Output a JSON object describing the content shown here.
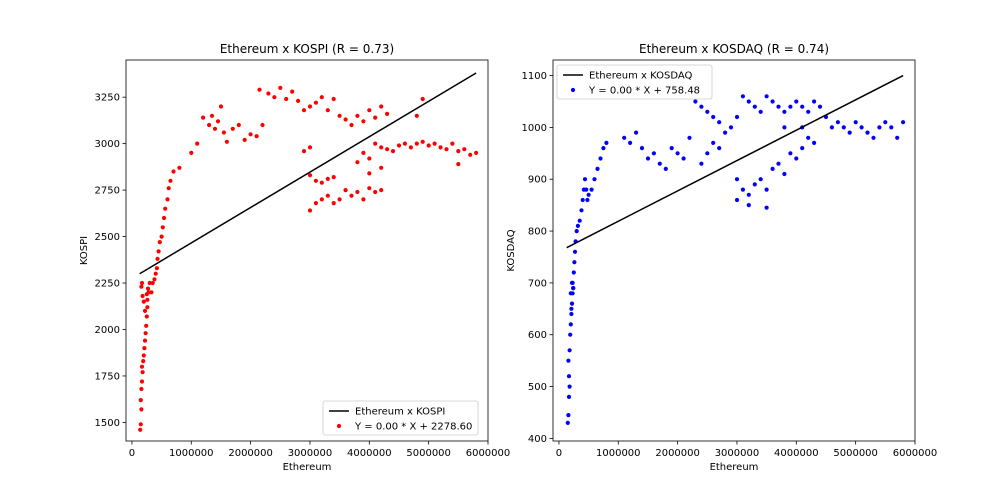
{
  "chart_data": [
    {
      "type": "scatter",
      "title": "Ethereum x KOSPI (R = 0.73)",
      "xlabel": "Ethereum",
      "ylabel": "KOSPI",
      "xlim": [
        -100000,
        6000000
      ],
      "ylim": [
        1400,
        3450
      ],
      "xticks": [
        0,
        1000000,
        2000000,
        3000000,
        4000000,
        5000000,
        6000000
      ],
      "xtick_labels": [
        "0",
        "1000000",
        "2000000",
        "3000000",
        "4000000",
        "5000000",
        "6000000"
      ],
      "yticks": [
        1500,
        1750,
        2000,
        2250,
        2500,
        2750,
        3000,
        3250
      ],
      "ytick_labels": [
        "1500",
        "1750",
        "2000",
        "2250",
        "2500",
        "2750",
        "3000",
        "3250"
      ],
      "grid": false,
      "legend_position": "lower-right",
      "series": [
        {
          "name": "Ethereum x KOSPI",
          "kind": "line",
          "color": "#000000",
          "x": [
            130000,
            5800000
          ],
          "y": [
            2300,
            3380
          ]
        },
        {
          "name": "Y = 0.00 * X + 2278.60",
          "kind": "scatter",
          "color": "#ff0000",
          "points": [
            [
              140000,
              1460
            ],
            [
              150000,
              1490
            ],
            [
              160000,
              1570
            ],
            [
              150000,
              1620
            ],
            [
              160000,
              1680
            ],
            [
              170000,
              1720
            ],
            [
              180000,
              1770
            ],
            [
              170000,
              1800
            ],
            [
              190000,
              1830
            ],
            [
              200000,
              1860
            ],
            [
              210000,
              1900
            ],
            [
              220000,
              1940
            ],
            [
              230000,
              1980
            ],
            [
              240000,
              2020
            ],
            [
              250000,
              2070
            ],
            [
              260000,
              2120
            ],
            [
              260000,
              2160
            ],
            [
              250000,
              2190
            ],
            [
              270000,
              2220
            ],
            [
              280000,
              2200
            ],
            [
              300000,
              2250
            ],
            [
              200000,
              2150
            ],
            [
              180000,
              2180
            ],
            [
              160000,
              2230
            ],
            [
              170000,
              2250
            ],
            [
              220000,
              2100
            ],
            [
              330000,
              2200
            ],
            [
              350000,
              2250
            ],
            [
              380000,
              2270
            ],
            [
              400000,
              2300
            ],
            [
              420000,
              2330
            ],
            [
              430000,
              2380
            ],
            [
              450000,
              2420
            ],
            [
              470000,
              2470
            ],
            [
              500000,
              2500
            ],
            [
              520000,
              2550
            ],
            [
              540000,
              2600
            ],
            [
              560000,
              2650
            ],
            [
              600000,
              2700
            ],
            [
              620000,
              2760
            ],
            [
              650000,
              2800
            ],
            [
              700000,
              2850
            ],
            [
              800000,
              2870
            ],
            [
              1000000,
              2950
            ],
            [
              1100000,
              3000
            ],
            [
              1200000,
              3140
            ],
            [
              1300000,
              3100
            ],
            [
              1350000,
              3150
            ],
            [
              1400000,
              3080
            ],
            [
              1450000,
              3120
            ],
            [
              1500000,
              3200
            ],
            [
              1550000,
              3060
            ],
            [
              1600000,
              3010
            ],
            [
              1700000,
              3080
            ],
            [
              1800000,
              3100
            ],
            [
              1900000,
              3020
            ],
            [
              2000000,
              3050
            ],
            [
              2100000,
              3040
            ],
            [
              2200000,
              3100
            ],
            [
              2150000,
              3290
            ],
            [
              2300000,
              3270
            ],
            [
              2400000,
              3250
            ],
            [
              2500000,
              3300
            ],
            [
              2600000,
              3240
            ],
            [
              2700000,
              3280
            ],
            [
              2800000,
              3230
            ],
            [
              2900000,
              3180
            ],
            [
              3000000,
              3200
            ],
            [
              3100000,
              3220
            ],
            [
              3200000,
              3250
            ],
            [
              3300000,
              3180
            ],
            [
              3400000,
              3240
            ],
            [
              3500000,
              3150
            ],
            [
              3600000,
              3130
            ],
            [
              3700000,
              3100
            ],
            [
              3800000,
              3150
            ],
            [
              3900000,
              3120
            ],
            [
              4000000,
              3180
            ],
            [
              4100000,
              3140
            ],
            [
              4200000,
              3200
            ],
            [
              4300000,
              3160
            ],
            [
              3000000,
              2640
            ],
            [
              3100000,
              2680
            ],
            [
              3200000,
              2700
            ],
            [
              3300000,
              2720
            ],
            [
              3400000,
              2680
            ],
            [
              3500000,
              2700
            ],
            [
              3600000,
              2750
            ],
            [
              3700000,
              2720
            ],
            [
              3800000,
              2740
            ],
            [
              3900000,
              2700
            ],
            [
              4000000,
              2760
            ],
            [
              4100000,
              2740
            ],
            [
              4200000,
              2750
            ],
            [
              3000000,
              2830
            ],
            [
              3100000,
              2800
            ],
            [
              3200000,
              2790
            ],
            [
              3300000,
              2810
            ],
            [
              3400000,
              2820
            ],
            [
              3900000,
              2950
            ],
            [
              4000000,
              2920
            ],
            [
              4100000,
              3000
            ],
            [
              4200000,
              2980
            ],
            [
              4300000,
              2970
            ],
            [
              4400000,
              2960
            ],
            [
              4500000,
              2990
            ],
            [
              4600000,
              3000
            ],
            [
              4700000,
              2980
            ],
            [
              4800000,
              3000
            ],
            [
              4900000,
              3010
            ],
            [
              5000000,
              2990
            ],
            [
              5100000,
              3000
            ],
            [
              5200000,
              2980
            ],
            [
              5300000,
              2970
            ],
            [
              5400000,
              3000
            ],
            [
              5500000,
              2960
            ],
            [
              5600000,
              2970
            ],
            [
              5700000,
              2940
            ],
            [
              5800000,
              2950
            ],
            [
              5500000,
              2890
            ],
            [
              4900000,
              3240
            ],
            [
              4800000,
              3150
            ],
            [
              4200000,
              2870
            ],
            [
              4000000,
              2840
            ],
            [
              3800000,
              2900
            ],
            [
              3000000,
              2980
            ],
            [
              2900000,
              2960
            ]
          ]
        }
      ]
    },
    {
      "type": "scatter",
      "title": "Ethereum x KOSDAQ (R = 0.74)",
      "xlabel": "Ethereum",
      "ylabel": "KOSDAQ",
      "xlim": [
        -100000,
        6000000
      ],
      "ylim": [
        395,
        1130
      ],
      "xticks": [
        0,
        1000000,
        2000000,
        3000000,
        4000000,
        5000000,
        6000000
      ],
      "xtick_labels": [
        "0",
        "1000000",
        "2000000",
        "3000000",
        "4000000",
        "5000000",
        "6000000"
      ],
      "yticks": [
        400,
        500,
        600,
        700,
        800,
        900,
        1000,
        1100
      ],
      "ytick_labels": [
        "400",
        "500",
        "600",
        "700",
        "800",
        "900",
        "1000",
        "1100"
      ],
      "grid": false,
      "legend_position": "upper-left",
      "series": [
        {
          "name": "Ethereum x KOSDAQ",
          "kind": "line",
          "color": "#000000",
          "x": [
            130000,
            5800000
          ],
          "y": [
            768,
            1100
          ]
        },
        {
          "name": "Y = 0.00 * X + 758.48",
          "kind": "scatter",
          "color": "#0000ff",
          "points": [
            [
              150000,
              430
            ],
            [
              160000,
              445
            ],
            [
              170000,
              480
            ],
            [
              180000,
              500
            ],
            [
              170000,
              520
            ],
            [
              160000,
              550
            ],
            [
              180000,
              570
            ],
            [
              190000,
              600
            ],
            [
              200000,
              620
            ],
            [
              210000,
              640
            ],
            [
              220000,
              660
            ],
            [
              230000,
              680
            ],
            [
              240000,
              690
            ],
            [
              230000,
              700
            ],
            [
              250000,
              720
            ],
            [
              260000,
              740
            ],
            [
              270000,
              760
            ],
            [
              280000,
              780
            ],
            [
              300000,
              800
            ],
            [
              320000,
              810
            ],
            [
              350000,
              820
            ],
            [
              380000,
              840
            ],
            [
              400000,
              860
            ],
            [
              420000,
              880
            ],
            [
              440000,
              900
            ],
            [
              460000,
              880
            ],
            [
              480000,
              860
            ],
            [
              500000,
              870
            ],
            [
              550000,
              880
            ],
            [
              600000,
              900
            ],
            [
              650000,
              920
            ],
            [
              700000,
              940
            ],
            [
              750000,
              960
            ],
            [
              800000,
              970
            ],
            [
              200000,
              680
            ],
            [
              210000,
              650
            ],
            [
              220000,
              700
            ],
            [
              240000,
              690
            ],
            [
              1100000,
              980
            ],
            [
              1200000,
              970
            ],
            [
              1300000,
              990
            ],
            [
              1400000,
              960
            ],
            [
              1500000,
              940
            ],
            [
              1600000,
              950
            ],
            [
              1700000,
              930
            ],
            [
              1800000,
              920
            ],
            [
              1900000,
              960
            ],
            [
              2000000,
              950
            ],
            [
              2100000,
              940
            ],
            [
              2200000,
              980
            ],
            [
              2300000,
              1050
            ],
            [
              2400000,
              1040
            ],
            [
              2500000,
              1030
            ],
            [
              2600000,
              1020
            ],
            [
              2700000,
              1010
            ],
            [
              2800000,
              990
            ],
            [
              2900000,
              1000
            ],
            [
              3000000,
              1020
            ],
            [
              3100000,
              1060
            ],
            [
              3200000,
              1050
            ],
            [
              3300000,
              1040
            ],
            [
              3400000,
              1030
            ],
            [
              3500000,
              1060
            ],
            [
              3600000,
              1050
            ],
            [
              3700000,
              1040
            ],
            [
              3800000,
              1030
            ],
            [
              3900000,
              1040
            ],
            [
              4000000,
              1050
            ],
            [
              4100000,
              1040
            ],
            [
              4200000,
              1030
            ],
            [
              4300000,
              1050
            ],
            [
              4400000,
              1040
            ],
            [
              4500000,
              1020
            ],
            [
              3000000,
              900
            ],
            [
              3100000,
              880
            ],
            [
              3200000,
              870
            ],
            [
              3300000,
              890
            ],
            [
              3400000,
              900
            ],
            [
              3500000,
              880
            ],
            [
              3600000,
              920
            ],
            [
              3700000,
              930
            ],
            [
              3800000,
              910
            ],
            [
              3900000,
              950
            ],
            [
              4000000,
              940
            ],
            [
              4100000,
              960
            ],
            [
              4200000,
              980
            ],
            [
              4300000,
              970
            ],
            [
              3000000,
              860
            ],
            [
              3200000,
              850
            ],
            [
              3500000,
              845
            ],
            [
              4600000,
              1000
            ],
            [
              4700000,
              1010
            ],
            [
              4800000,
              1000
            ],
            [
              4900000,
              990
            ],
            [
              5000000,
              1010
            ],
            [
              5100000,
              1000
            ],
            [
              5200000,
              990
            ],
            [
              5300000,
              980
            ],
            [
              5400000,
              1000
            ],
            [
              5500000,
              1010
            ],
            [
              5600000,
              1000
            ],
            [
              5700000,
              980
            ],
            [
              5800000,
              1010
            ],
            [
              2500000,
              950
            ],
            [
              2600000,
              970
            ],
            [
              2700000,
              960
            ],
            [
              2400000,
              930
            ],
            [
              4100000,
              1000
            ],
            [
              3800000,
              1000
            ]
          ]
        }
      ]
    }
  ]
}
